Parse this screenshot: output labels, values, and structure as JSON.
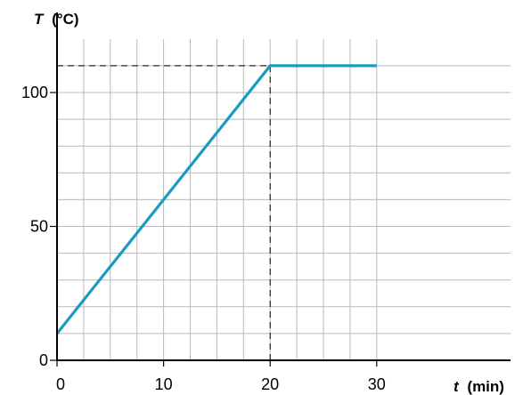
{
  "chart_data": {
    "type": "line",
    "title": "",
    "x_axis": {
      "symbol": "t",
      "unit": "(min)",
      "range": [
        0,
        32
      ],
      "ticks": [
        0,
        10,
        20,
        30
      ],
      "tick_labels": [
        "0",
        "10",
        "20",
        "30"
      ]
    },
    "y_axis": {
      "symbol": "T",
      "unit": "(°C)",
      "range": [
        0,
        112
      ],
      "ticks": [
        0,
        50,
        100
      ],
      "tick_labels": [
        "0",
        "50",
        "100"
      ]
    },
    "grid": true,
    "series": [
      {
        "color": "#1a9bc0",
        "points": [
          {
            "x": 0,
            "y": 10
          },
          {
            "x": 20,
            "y": 110
          },
          {
            "x": 30,
            "y": 110
          }
        ]
      }
    ],
    "reference_lines": [
      {
        "style": "dashed",
        "from": {
          "x": 0,
          "y": 110
        },
        "to": {
          "x": 20,
          "y": 110
        }
      },
      {
        "style": "dashed",
        "from": {
          "x": 20,
          "y": 0
        },
        "to": {
          "x": 20,
          "y": 110
        }
      }
    ]
  }
}
